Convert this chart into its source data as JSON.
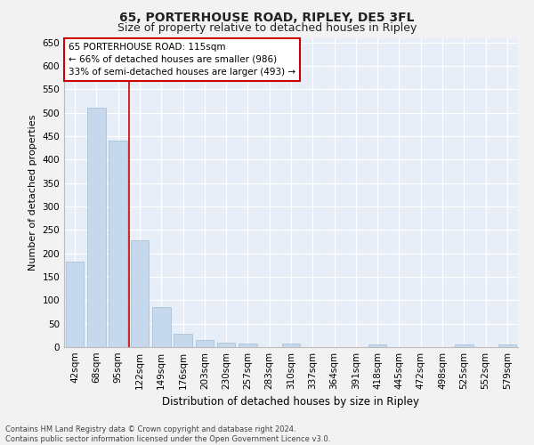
{
  "title1": "65, PORTERHOUSE ROAD, RIPLEY, DE5 3FL",
  "title2": "Size of property relative to detached houses in Ripley",
  "xlabel": "Distribution of detached houses by size in Ripley",
  "ylabel": "Number of detached properties",
  "categories": [
    "42sqm",
    "68sqm",
    "95sqm",
    "122sqm",
    "149sqm",
    "176sqm",
    "203sqm",
    "230sqm",
    "257sqm",
    "283sqm",
    "310sqm",
    "337sqm",
    "364sqm",
    "391sqm",
    "418sqm",
    "445sqm",
    "472sqm",
    "498sqm",
    "525sqm",
    "552sqm",
    "579sqm"
  ],
  "values": [
    182,
    510,
    441,
    228,
    85,
    28,
    15,
    10,
    8,
    0,
    8,
    0,
    0,
    0,
    6,
    0,
    0,
    0,
    6,
    0,
    6
  ],
  "bar_color": "#c6d9ec",
  "bar_edge_color": "#a0bcd4",
  "vline_x_index": 2,
  "vline_color": "#cc0000",
  "annotation_lines": [
    "65 PORTERHOUSE ROAD: 115sqm",
    "← 66% of detached houses are smaller (986)",
    "33% of semi-detached houses are larger (493) →"
  ],
  "annotation_box_color": "#ffffff",
  "annotation_box_edge": "#cc0000",
  "ylim": [
    0,
    660
  ],
  "yticks": [
    0,
    50,
    100,
    150,
    200,
    250,
    300,
    350,
    400,
    450,
    500,
    550,
    600,
    650
  ],
  "footnote": "Contains HM Land Registry data © Crown copyright and database right 2024.\nContains public sector information licensed under the Open Government Licence v3.0.",
  "fig_bg_color": "#f2f2f2",
  "plot_bg_color": "#e8eef7",
  "grid_color": "#ffffff",
  "title1_fontsize": 10,
  "title2_fontsize": 9,
  "xlabel_fontsize": 8.5,
  "ylabel_fontsize": 8,
  "tick_fontsize": 7.5,
  "annotation_fontsize": 7.5,
  "footnote_fontsize": 6
}
